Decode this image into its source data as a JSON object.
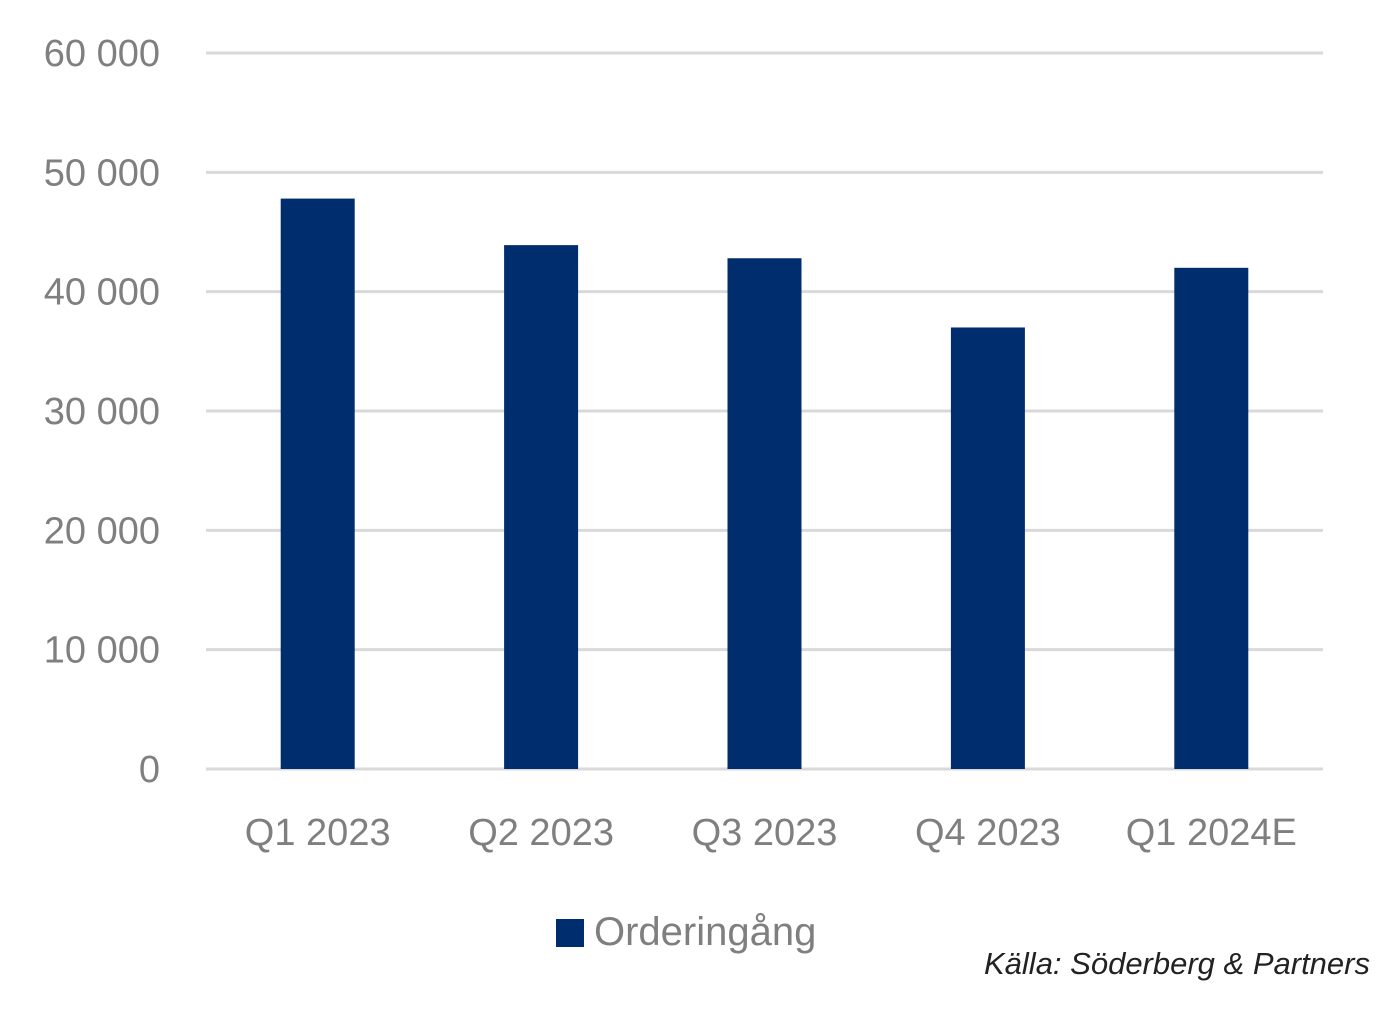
{
  "chart_data": {
    "type": "bar",
    "categories": [
      "Q1 2023",
      "Q2 2023",
      "Q3 2023",
      "Q4 2023",
      "Q1 2024E"
    ],
    "series": [
      {
        "name": "Orderingång",
        "values": [
          47800,
          43900,
          42800,
          37000,
          42000
        ]
      }
    ],
    "ylim": [
      0,
      60000
    ],
    "yticks": [
      0,
      10000,
      20000,
      30000,
      40000,
      50000,
      60000
    ],
    "ytick_labels": [
      "0",
      "10 000",
      "20 000",
      "30 000",
      "40 000",
      "50 000",
      "60 000"
    ],
    "grid": true,
    "legend_position": "bottom",
    "colors": {
      "bar": "#002D6E",
      "grid": "#d9d9d9",
      "text": "#7f7f7f"
    }
  },
  "legend": {
    "label": "Orderingång"
  },
  "source": "Källa: Söderberg & Partners"
}
